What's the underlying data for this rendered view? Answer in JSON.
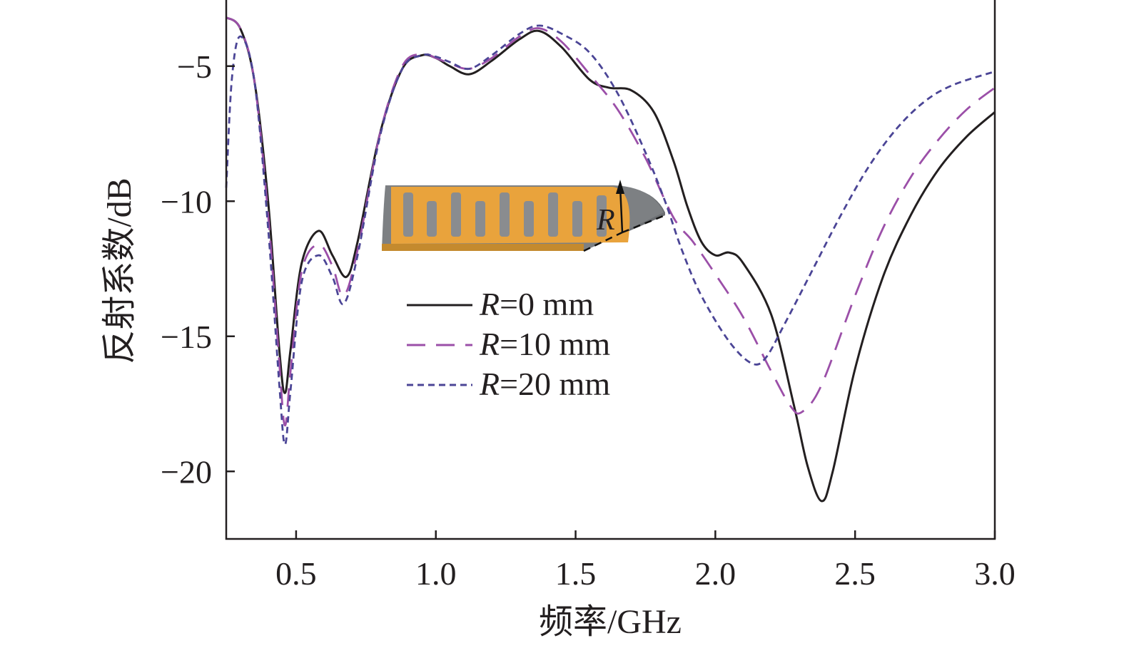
{
  "chart_data": {
    "type": "line",
    "xlabel": "频率/GHz",
    "ylabel": "反射系数/dB",
    "xlim": [
      0.25,
      3.0
    ],
    "ylim": [
      -22.5,
      -2.5
    ],
    "xticks": [
      0.5,
      1.0,
      1.5,
      2.0,
      2.5,
      3.0
    ],
    "xtick_labels": [
      "0.5",
      "1.0",
      "1.5",
      "2.0",
      "2.5",
      "3.0"
    ],
    "yticks": [
      -5,
      -10,
      -15,
      -20
    ],
    "ytick_labels": [
      "−5",
      "−10",
      "−15",
      "−20"
    ],
    "grid": false,
    "legend_position": "center-left",
    "inset_label": "R",
    "series": [
      {
        "name": "R=0 mm",
        "legend_prefix": "R",
        "legend_suffix": "=0 mm",
        "color": "#231f20",
        "dash": "solid",
        "points": [
          [
            0.25,
            -3.2
          ],
          [
            0.3,
            -3.6
          ],
          [
            0.35,
            -5.5
          ],
          [
            0.4,
            -10
          ],
          [
            0.44,
            -15.5
          ],
          [
            0.46,
            -17.1
          ],
          [
            0.48,
            -15.5
          ],
          [
            0.52,
            -12.3
          ],
          [
            0.58,
            -11.1
          ],
          [
            0.63,
            -12
          ],
          [
            0.68,
            -12.8
          ],
          [
            0.72,
            -11.5
          ],
          [
            0.8,
            -7.5
          ],
          [
            0.88,
            -5.1
          ],
          [
            0.95,
            -4.6
          ],
          [
            1.0,
            -4.7
          ],
          [
            1.05,
            -5
          ],
          [
            1.12,
            -5.3
          ],
          [
            1.2,
            -4.8
          ],
          [
            1.3,
            -4
          ],
          [
            1.37,
            -3.7
          ],
          [
            1.45,
            -4.3
          ],
          [
            1.55,
            -5.5
          ],
          [
            1.62,
            -5.8
          ],
          [
            1.7,
            -5.9
          ],
          [
            1.78,
            -6.7
          ],
          [
            1.85,
            -8.5
          ],
          [
            1.9,
            -10.2
          ],
          [
            1.95,
            -11.5
          ],
          [
            2.0,
            -12
          ],
          [
            2.05,
            -11.9
          ],
          [
            2.1,
            -12.3
          ],
          [
            2.2,
            -14.2
          ],
          [
            2.28,
            -17.5
          ],
          [
            2.33,
            -19.8
          ],
          [
            2.38,
            -21.1
          ],
          [
            2.42,
            -20
          ],
          [
            2.5,
            -16.2
          ],
          [
            2.6,
            -12.8
          ],
          [
            2.7,
            -10.5
          ],
          [
            2.8,
            -8.8
          ],
          [
            2.9,
            -7.6
          ],
          [
            3.0,
            -6.7
          ]
        ]
      },
      {
        "name": "R=10 mm",
        "legend_prefix": "R",
        "legend_suffix": "=10 mm",
        "color": "#9b4fa8",
        "dash": "26 15",
        "points": [
          [
            0.25,
            -3.2
          ],
          [
            0.3,
            -3.6
          ],
          [
            0.35,
            -5.5
          ],
          [
            0.4,
            -10.5
          ],
          [
            0.44,
            -16
          ],
          [
            0.46,
            -18.3
          ],
          [
            0.48,
            -16.3
          ],
          [
            0.52,
            -12.6
          ],
          [
            0.58,
            -11.6
          ],
          [
            0.63,
            -12.4
          ],
          [
            0.67,
            -13.5
          ],
          [
            0.72,
            -11.8
          ],
          [
            0.8,
            -7.5
          ],
          [
            0.88,
            -5
          ],
          [
            0.95,
            -4.55
          ],
          [
            1.0,
            -4.7
          ],
          [
            1.05,
            -4.9
          ],
          [
            1.12,
            -5.1
          ],
          [
            1.2,
            -4.7
          ],
          [
            1.3,
            -3.9
          ],
          [
            1.37,
            -3.6
          ],
          [
            1.45,
            -4.1
          ],
          [
            1.55,
            -5.3
          ],
          [
            1.65,
            -6.6
          ],
          [
            1.75,
            -8.4
          ],
          [
            1.85,
            -10.6
          ],
          [
            1.92,
            -11.5
          ],
          [
            2.0,
            -12.7
          ],
          [
            2.1,
            -14.3
          ],
          [
            2.2,
            -16.3
          ],
          [
            2.27,
            -17.6
          ],
          [
            2.31,
            -17.8
          ],
          [
            2.38,
            -16.8
          ],
          [
            2.5,
            -13.5
          ],
          [
            2.6,
            -11
          ],
          [
            2.7,
            -9.1
          ],
          [
            2.8,
            -7.7
          ],
          [
            2.9,
            -6.6
          ],
          [
            3.0,
            -5.8
          ]
        ]
      },
      {
        "name": "R=20 mm",
        "legend_prefix": "R",
        "legend_suffix": "=20 mm",
        "color": "#4b4596",
        "dash": "9 6",
        "points": [
          [
            0.25,
            -9.5
          ],
          [
            0.27,
            -5.5
          ],
          [
            0.3,
            -3.9
          ],
          [
            0.35,
            -5.5
          ],
          [
            0.4,
            -11
          ],
          [
            0.44,
            -16.8
          ],
          [
            0.46,
            -19
          ],
          [
            0.48,
            -17
          ],
          [
            0.52,
            -13
          ],
          [
            0.58,
            -12
          ],
          [
            0.63,
            -12.8
          ],
          [
            0.67,
            -13.8
          ],
          [
            0.72,
            -12
          ],
          [
            0.8,
            -7.6
          ],
          [
            0.88,
            -5.1
          ],
          [
            0.95,
            -4.6
          ],
          [
            1.0,
            -4.65
          ],
          [
            1.05,
            -4.85
          ],
          [
            1.12,
            -5.1
          ],
          [
            1.2,
            -4.6
          ],
          [
            1.3,
            -3.8
          ],
          [
            1.37,
            -3.5
          ],
          [
            1.45,
            -3.8
          ],
          [
            1.55,
            -4.5
          ],
          [
            1.65,
            -6
          ],
          [
            1.75,
            -8.2
          ],
          [
            1.82,
            -10
          ],
          [
            1.88,
            -11.8
          ],
          [
            1.95,
            -13.5
          ],
          [
            2.05,
            -15.2
          ],
          [
            2.13,
            -16
          ],
          [
            2.18,
            -15.8
          ],
          [
            2.25,
            -14.5
          ],
          [
            2.35,
            -12.5
          ],
          [
            2.45,
            -10.5
          ],
          [
            2.55,
            -8.7
          ],
          [
            2.65,
            -7.3
          ],
          [
            2.75,
            -6.3
          ],
          [
            2.85,
            -5.7
          ],
          [
            3.0,
            -5.2
          ]
        ]
      }
    ]
  }
}
